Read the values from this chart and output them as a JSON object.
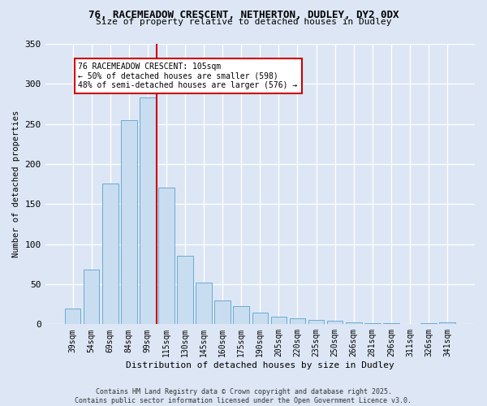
{
  "title1": "76, RACEMEADOW CRESCENT, NETHERTON, DUDLEY, DY2 0DX",
  "title2": "Size of property relative to detached houses in Dudley",
  "xlabel": "Distribution of detached houses by size in Dudley",
  "ylabel": "Number of detached properties",
  "bar_labels": [
    "39sqm",
    "54sqm",
    "69sqm",
    "84sqm",
    "99sqm",
    "115sqm",
    "130sqm",
    "145sqm",
    "160sqm",
    "175sqm",
    "190sqm",
    "205sqm",
    "220sqm",
    "235sqm",
    "250sqm",
    "266sqm",
    "281sqm",
    "296sqm",
    "311sqm",
    "326sqm",
    "341sqm"
  ],
  "bar_values": [
    20,
    68,
    176,
    255,
    283,
    171,
    85,
    52,
    30,
    23,
    15,
    9,
    7,
    5,
    4,
    2,
    1,
    1,
    0,
    1,
    2
  ],
  "bar_color": "#c9ddf0",
  "bar_edge_color": "#6aaad4",
  "vline_pos": 4.5,
  "annotation_text": "76 RACEMEADOW CRESCENT: 105sqm\n← 50% of detached houses are smaller (598)\n48% of semi-detached houses are larger (576) →",
  "annotation_box_color": "#ffffff",
  "annotation_box_edge": "#cc0000",
  "vline_color": "#cc0000",
  "background_color": "#dce6f5",
  "grid_color": "#ffffff",
  "ylim": [
    0,
    350
  ],
  "yticks": [
    0,
    50,
    100,
    150,
    200,
    250,
    300,
    350
  ],
  "footer": "Contains HM Land Registry data © Crown copyright and database right 2025.\nContains public sector information licensed under the Open Government Licence v3.0."
}
